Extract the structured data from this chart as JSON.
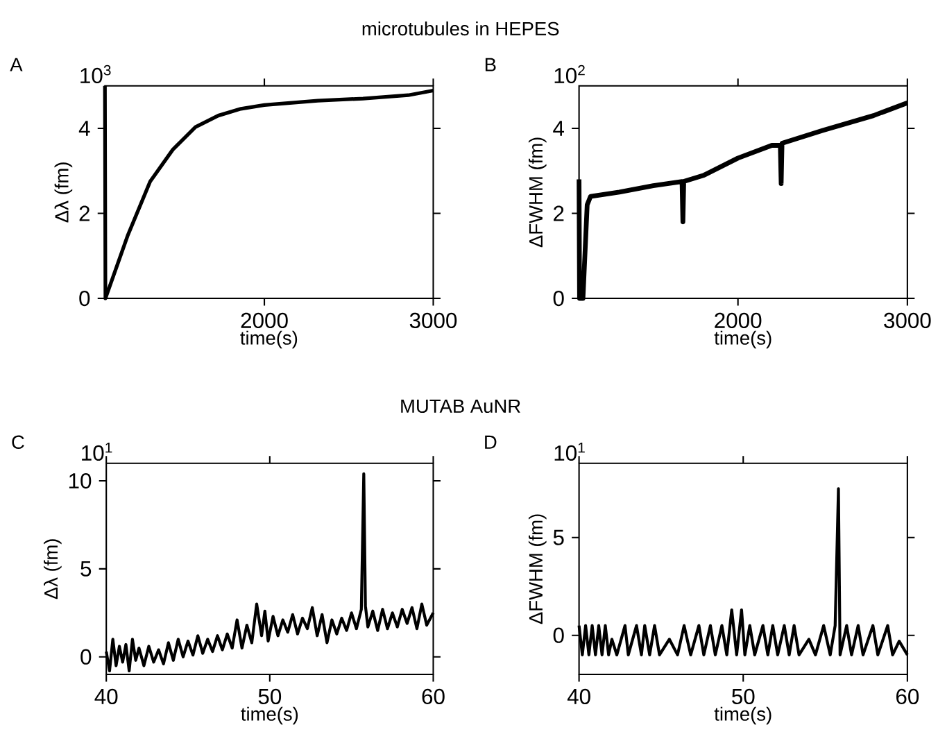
{
  "chart_data": [
    {
      "type": "line",
      "title": "microtubules in HEPES",
      "xlabel": "time(s)",
      "ylabel": "Δλ (fm)",
      "annotations": [
        "A",
        "10$^{3}$"
      ],
      "x": [
        1056,
        1059,
        1190,
        1324,
        1458,
        1592,
        1727,
        1861,
        2000,
        2316,
        2584,
        2852,
        3000
      ],
      "series": [
        {
          "color": "#000000",
          "values": [
            5.0,
            0,
            1.47,
            2.75,
            3.5,
            4.03,
            4.3,
            4.46,
            4.55,
            4.65,
            4.7,
            4.78,
            4.89
          ]
        }
      ],
      "xlim": [
        1056,
        3000
      ],
      "ylim": [
        0,
        5
      ],
      "xticks": [
        2000,
        3000
      ],
      "yticks": [
        0,
        2,
        4
      ]
    },
    {
      "type": "line",
      "xlabel": "time(s)",
      "ylabel": "ΔFWHM (fm)",
      "annotations": [
        "B",
        "10$^{2}$"
      ],
      "x": [
        1062,
        1065,
        1085,
        1110,
        1130,
        1300,
        1500,
        1670,
        1675,
        1680,
        1800,
        2000,
        2200,
        2250,
        2255,
        2260,
        2500,
        2800,
        3000
      ],
      "series": [
        {
          "color": "#000000",
          "values": [
            2.8,
            0,
            0,
            2.2,
            2.4,
            2.5,
            2.65,
            2.75,
            1.8,
            2.75,
            2.9,
            3.3,
            3.6,
            3.6,
            2.7,
            3.65,
            3.95,
            4.3,
            4.6
          ]
        }
      ],
      "xlim": [
        1062,
        3000
      ],
      "ylim": [
        0,
        5
      ],
      "xticks": [
        2000,
        3000
      ],
      "yticks": [
        0,
        2,
        4
      ]
    },
    {
      "type": "line",
      "title": "MUTAB AuNR",
      "xlabel": "time(s)",
      "ylabel": "Δλ (fm)",
      "annotations": [
        "C",
        "10$^{1}$"
      ],
      "x": [
        40.0,
        40.2,
        40.4,
        40.6,
        40.8,
        41.0,
        41.2,
        41.4,
        41.6,
        41.8,
        42.0,
        42.3,
        42.6,
        42.9,
        43.2,
        43.5,
        43.8,
        44.1,
        44.4,
        44.7,
        45.0,
        45.3,
        45.6,
        45.9,
        46.2,
        46.5,
        46.8,
        47.1,
        47.4,
        47.7,
        48.0,
        48.3,
        48.6,
        48.9,
        49.2,
        49.5,
        49.7,
        49.9,
        50.2,
        50.5,
        50.8,
        51.1,
        51.4,
        51.7,
        52.0,
        52.3,
        52.6,
        52.9,
        53.2,
        53.5,
        53.8,
        54.1,
        54.4,
        54.7,
        55.0,
        55.3,
        55.6,
        55.75,
        55.85,
        56.0,
        56.3,
        56.6,
        56.9,
        57.2,
        57.5,
        57.8,
        58.1,
        58.4,
        58.7,
        59.0,
        59.3,
        59.6,
        60.0
      ],
      "series": [
        {
          "color": "#000000",
          "values": [
            0.3,
            -0.8,
            1.0,
            -0.5,
            0.6,
            -0.3,
            0.7,
            -0.8,
            1.0,
            -0.2,
            0.5,
            -0.5,
            0.6,
            -0.3,
            0.4,
            -0.4,
            0.8,
            -0.2,
            1.0,
            0.0,
            0.9,
            0.1,
            1.2,
            0.2,
            1.0,
            0.3,
            1.2,
            0.4,
            1.3,
            0.5,
            2.1,
            0.5,
            1.8,
            0.8,
            3.0,
            1.2,
            2.6,
            0.9,
            2.3,
            1.2,
            2.1,
            1.4,
            2.4,
            1.3,
            2.2,
            1.6,
            2.8,
            1.2,
            2.4,
            0.8,
            2.1,
            1.3,
            2.2,
            1.5,
            2.5,
            1.6,
            2.7,
            10.4,
            2.9,
            1.7,
            2.6,
            1.5,
            2.7,
            1.6,
            2.5,
            1.7,
            2.7,
            1.9,
            2.8,
            1.6,
            3.0,
            1.8,
            2.5
          ]
        }
      ],
      "xlim": [
        40,
        60
      ],
      "ylim": [
        -1,
        11
      ],
      "xticks": [
        40,
        50,
        60
      ],
      "yticks": [
        0,
        5,
        10
      ]
    },
    {
      "type": "line",
      "xlabel": "time(s)",
      "ylabel": "ΔFWHM (fm)",
      "annotations": [
        "D",
        "10$^{1}$"
      ],
      "x": [
        40.0,
        40.2,
        40.4,
        40.6,
        40.8,
        41.0,
        41.2,
        41.4,
        41.6,
        41.8,
        42.0,
        42.3,
        42.8,
        43.0,
        43.5,
        43.8,
        44.0,
        44.3,
        44.6,
        44.9,
        45.5,
        46.0,
        46.4,
        46.8,
        47.3,
        47.6,
        48.0,
        48.3,
        48.7,
        49.0,
        49.3,
        49.6,
        49.9,
        50.1,
        50.4,
        50.7,
        51.2,
        51.5,
        51.8,
        52.1,
        52.5,
        52.8,
        53.1,
        53.4,
        54.0,
        54.4,
        54.9,
        55.3,
        55.6,
        55.8,
        55.9,
        56.3,
        56.6,
        57.0,
        57.3,
        57.9,
        58.2,
        58.8,
        59.1,
        59.5,
        60.0
      ],
      "series": [
        {
          "color": "#000000",
          "values": [
            0.5,
            -1.0,
            0.5,
            -1.0,
            0.5,
            -1.0,
            0.5,
            -1.0,
            0.5,
            -1.0,
            -0.2,
            -1.0,
            0.5,
            -1.0,
            0.5,
            -1.0,
            0.5,
            -1.0,
            0.5,
            -1.0,
            -0.2,
            -1.0,
            0.5,
            -1.0,
            0.5,
            -1.0,
            0.5,
            -1.0,
            0.5,
            -1.0,
            1.3,
            -1.0,
            1.3,
            -1.0,
            0.5,
            -1.0,
            0.5,
            -1.0,
            0.5,
            -1.0,
            0.5,
            -1.0,
            0.5,
            -1.0,
            -0.2,
            -1.0,
            0.5,
            -1.0,
            0.5,
            7.5,
            -1.0,
            0.5,
            -1.0,
            0.5,
            -1.0,
            0.5,
            -1.0,
            0.5,
            -1.0,
            -0.3,
            -1.0
          ]
        }
      ],
      "xlim": [
        40,
        60
      ],
      "ylim": [
        -2,
        8.8
      ],
      "xticks": [
        40,
        50,
        60
      ],
      "yticks": [
        0,
        5
      ]
    }
  ]
}
